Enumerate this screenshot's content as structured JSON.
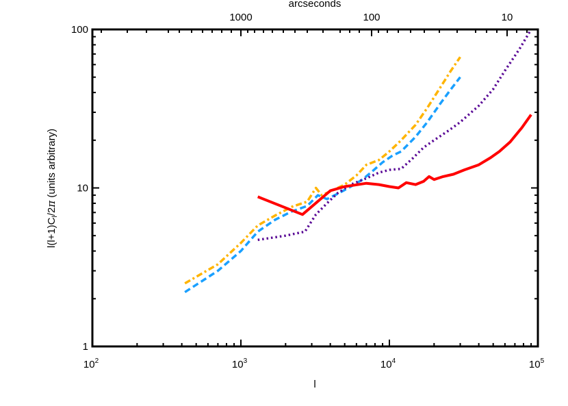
{
  "chart_data": {
    "type": "line",
    "title": "",
    "xlabel": "l",
    "ylabel": "l(l+1)C_l/2π (units arbitrary)",
    "top_xlabel": "arcseconds",
    "xscale": "log",
    "yscale": "log",
    "xlim": [
      100,
      100000
    ],
    "ylim": [
      1,
      100
    ],
    "grid": false,
    "legend": "none",
    "x_ticks": [
      "10^2",
      "10^3",
      "10^4",
      "10^5"
    ],
    "y_ticks": [
      "1",
      "10",
      "100"
    ],
    "top_ticks": [
      "1000",
      "100",
      "10"
    ],
    "series": [
      {
        "name": "orange dash-dot",
        "color": "#ffb400",
        "style": "dashdot",
        "x": [
          420,
          700,
          1000,
          1300,
          1700,
          2200,
          2800,
          3200,
          3500,
          4000,
          5000,
          6000,
          7000,
          8500,
          10000,
          12000,
          15000,
          18000,
          22000,
          26000,
          30000
        ],
        "values": [
          2.5,
          3.3,
          4.5,
          5.8,
          6.7,
          7.6,
          8.2,
          10.0,
          9.0,
          9.5,
          10.5,
          12.0,
          14.0,
          15.0,
          17.0,
          20.0,
          25.0,
          32.0,
          43.0,
          55.0,
          67.0
        ]
      },
      {
        "name": "blue dashed",
        "color": "#1aa0ff",
        "style": "dashed",
        "x": [
          420,
          700,
          1000,
          1300,
          1700,
          2200,
          2800,
          3300,
          3800,
          4500,
          5500,
          6500,
          7500,
          9000,
          10500,
          12000,
          15000,
          18000,
          22000,
          26000,
          30000
        ],
        "values": [
          2.2,
          3.0,
          4.0,
          5.3,
          6.3,
          7.1,
          7.7,
          9.0,
          8.5,
          9.2,
          10.2,
          11.2,
          12.5,
          14.5,
          16.0,
          17.0,
          21.0,
          26.0,
          34.0,
          42.0,
          50.0
        ]
      },
      {
        "name": "purple dotted",
        "color": "#5a0a96",
        "style": "dotted",
        "x": [
          1300,
          2000,
          2700,
          3200,
          3800,
          4500,
          5500,
          7000,
          8500,
          10000,
          12000,
          14500,
          17000,
          20000,
          25000,
          30000,
          40000,
          50000,
          60000,
          75000,
          90000
        ],
        "values": [
          4.7,
          5.0,
          5.3,
          6.8,
          8.0,
          9.3,
          10.5,
          11.5,
          12.5,
          13.0,
          13.2,
          15.5,
          18.0,
          20.0,
          23.0,
          26.0,
          33.0,
          42.0,
          55.0,
          75.0,
          100.0
        ]
      },
      {
        "name": "red solid",
        "color": "#ff0000",
        "style": "solid",
        "x": [
          1300,
          2600,
          4000,
          5000,
          7000,
          8500,
          10000,
          11500,
          13000,
          15000,
          17000,
          18500,
          20000,
          23000,
          27000,
          32000,
          40000,
          48000,
          55000,
          65000,
          78000,
          90000
        ],
        "values": [
          8.8,
          6.8,
          9.6,
          10.2,
          10.7,
          10.5,
          10.2,
          10.0,
          10.8,
          10.5,
          11.0,
          11.8,
          11.3,
          11.8,
          12.2,
          13.0,
          14.0,
          15.5,
          17.0,
          19.5,
          24.0,
          29.0
        ]
      }
    ]
  }
}
